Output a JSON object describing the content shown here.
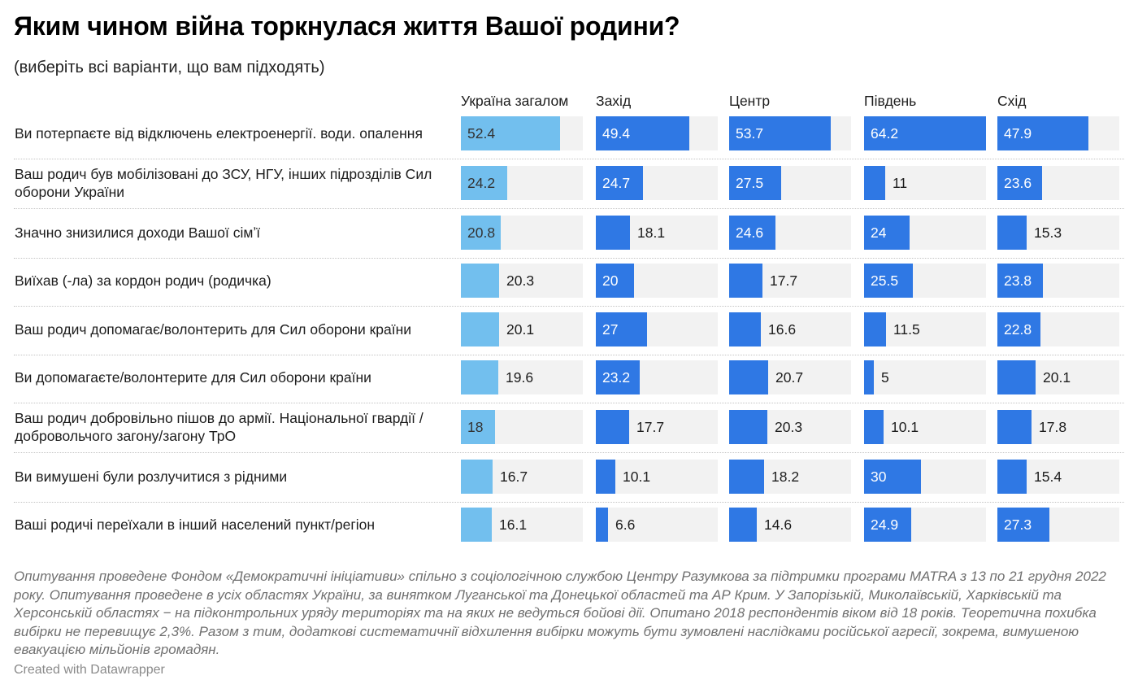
{
  "title": "Яким чином війна торкнулася життя Вашої родини?",
  "subtitle": "(виберіть всі варіанти, що вам підходять)",
  "notes": "Опитування проведене Фондом «Демократичні ініціативи» спільно з соціологічною службою Центру Разумкова за підтримки програми MATRA з 13 по 21 грудня 2022 року. Опитування проведене в усіх областях України, за винятком Луганської та Донецької областей та АР Крим. У Запорізькій, Миколаївській, Харківській та Херсонській областях − на підконтрольних уряду територіях та на яких не ведуться бойові дії. Опитано 2018 респондентів віком від 18 років. Теоретична похибка вибірки не перевищує 2,3%. Разом з тим, додаткові систематичнії відхилення вибірки можуть бути зумовлені наслідками російської агресії, зокрема, вимушеною евакуацією мільйонів громадян.",
  "credit": "Created with Datawrapper",
  "colors": {
    "ukraine": "#72bfee",
    "regions": "#2f78e4",
    "track": "#f2f2f2",
    "label_dark": "#1d1d1d",
    "label_on_dark": "#ffffff",
    "label_on_light": "#333333"
  },
  "chart_data": {
    "type": "bar",
    "title": "Яким чином війна торкнулася життя Вашої родини?",
    "subtitle": "(виберіть всі варіанти, що вам підходять)",
    "xlabel": "",
    "ylabel": "",
    "xlim": [
      0,
      64.2
    ],
    "grid": false,
    "legend": "none",
    "categories": [
      "Ви потерпаєте від відключень електроенергії. води. опалення",
      "Ваш родич був мобілізовані до ЗСУ, НГУ, інших підрозділів Сил оборони України",
      "Значно знизилися доходи Вашої сімʼї",
      "Виїхав (-ла) за кордон родич (родичка)",
      "Ваш родич допомагає/волонтерить для Сил оборони країни",
      "Ви допомагаєте/волонтерите для Сил оборони країни",
      "Ваш родич добровільно пішов до армії. Національної гвардії / добровольчого загону/загону ТрО",
      "Ви вимушені були розлучитися з рідними",
      "Ваші родичі переїхали в інший населений пункт/регіон"
    ],
    "series": [
      {
        "name": "Україна загалом",
        "values": [
          52.4,
          24.2,
          20.8,
          20.3,
          20.1,
          19.6,
          18,
          16.7,
          16.1
        ]
      },
      {
        "name": "Захід",
        "values": [
          49.4,
          24.7,
          18.1,
          20,
          27,
          23.2,
          17.7,
          10.1,
          6.6
        ]
      },
      {
        "name": "Центр",
        "values": [
          53.7,
          27.5,
          24.6,
          17.7,
          16.6,
          20.7,
          20.3,
          18.2,
          14.6
        ]
      },
      {
        "name": "Південь",
        "values": [
          64.2,
          11,
          24,
          25.5,
          11.5,
          5,
          10.1,
          30,
          24.9
        ]
      },
      {
        "name": "Схід",
        "values": [
          47.9,
          23.6,
          15.3,
          23.8,
          22.8,
          20.1,
          17.8,
          15.4,
          27.3
        ]
      }
    ]
  }
}
